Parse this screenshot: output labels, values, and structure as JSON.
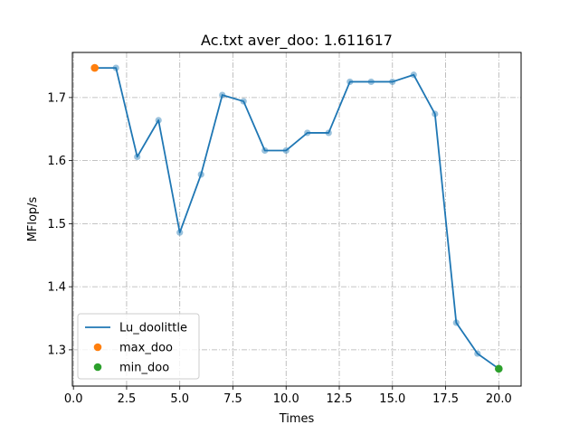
{
  "chart_data": {
    "type": "line",
    "title": "Ac.txt aver_doo: 1.611617",
    "xlabel": "Times",
    "ylabel": "MFlop/s",
    "xlim": [
      -0.05,
      21.05
    ],
    "ylim": [
      1.2425,
      1.7715
    ],
    "xticks": [
      0.0,
      2.5,
      5.0,
      7.5,
      10.0,
      12.5,
      15.0,
      17.5,
      20.0
    ],
    "xtick_labels": [
      "0.0",
      "2.5",
      "5.0",
      "7.5",
      "10.0",
      "12.5",
      "15.0",
      "17.5",
      "20.0"
    ],
    "yticks": [
      1.3,
      1.4,
      1.5,
      1.6,
      1.7
    ],
    "ytick_labels": [
      "1.3",
      "1.4",
      "1.5",
      "1.6",
      "1.7"
    ],
    "grid": true,
    "legend_position": "lower-left",
    "series": [
      {
        "name": "Lu_doolittle",
        "kind": "line",
        "color": "#1f77b4",
        "x": [
          1,
          2,
          3,
          4,
          5,
          6,
          7,
          8,
          9,
          10,
          11,
          12,
          13,
          14,
          15,
          16,
          17,
          18,
          19,
          20
        ],
        "y": [
          1.747,
          1.747,
          1.606,
          1.664,
          1.486,
          1.578,
          1.704,
          1.694,
          1.616,
          1.616,
          1.644,
          1.644,
          1.725,
          1.725,
          1.725,
          1.736,
          1.674,
          1.343,
          1.294,
          1.27
        ]
      },
      {
        "name": "max_doo",
        "kind": "scatter",
        "color": "#ff7f0e",
        "x": [
          1
        ],
        "y": [
          1.747
        ]
      },
      {
        "name": "min_doo",
        "kind": "scatter",
        "color": "#2ca02c",
        "x": [
          20
        ],
        "y": [
          1.27
        ]
      }
    ]
  }
}
